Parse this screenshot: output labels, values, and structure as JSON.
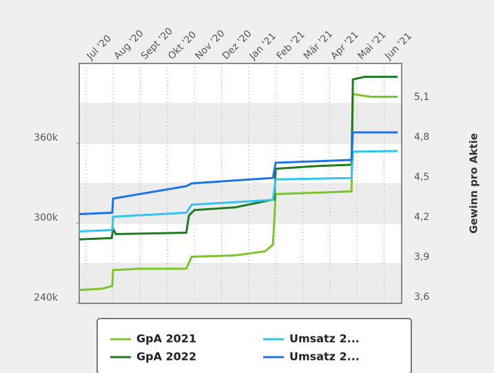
{
  "chart_data": {
    "type": "line",
    "xlim": [
      -0.25,
      11.65
    ],
    "xticks": [
      {
        "value": 0,
        "label": "Jul '20"
      },
      {
        "value": 1,
        "label": "Aug '20"
      },
      {
        "value": 2,
        "label": "Sept '20"
      },
      {
        "value": 3,
        "label": "Okt '20"
      },
      {
        "value": 4,
        "label": "Nov '20"
      },
      {
        "value": 5,
        "label": "Dez '20"
      },
      {
        "value": 6,
        "label": "Jan '21"
      },
      {
        "value": 7,
        "label": "Feb '21"
      },
      {
        "value": 8,
        "label": "Mär '21"
      },
      {
        "value": 9,
        "label": "Apr '21"
      },
      {
        "value": 10,
        "label": "Mai '21"
      },
      {
        "value": 11,
        "label": "Jun '21"
      }
    ],
    "ylim": [
      240000,
      420000
    ],
    "yticks": [
      {
        "value": 240000,
        "label": "240k"
      },
      {
        "value": 300000,
        "label": "300k"
      },
      {
        "value": 360000,
        "label": "360k"
      }
    ],
    "y2label": "Gewinn pro Aktie",
    "y2lim": [
      3.6,
      5.4
    ],
    "y2ticks": [
      {
        "value": 3.6,
        "label": "3,6"
      },
      {
        "value": 3.9,
        "label": "3,9"
      },
      {
        "value": 4.2,
        "label": "4,2"
      },
      {
        "value": 4.5,
        "label": "4,5"
      },
      {
        "value": 4.8,
        "label": "4,8"
      },
      {
        "value": 5.1,
        "label": "5,1"
      }
    ],
    "series": [
      {
        "name": "GpA 2021",
        "color": "#7dc42a",
        "axis": "y2",
        "x": [
          -0.25,
          0.6,
          0.97,
          1.0,
          2.0,
          3.7,
          3.9,
          5.5,
          6.6,
          6.9,
          7.0,
          8.5,
          9.8,
          9.85,
          10.5,
          11.5
        ],
        "values": [
          3.7,
          3.71,
          3.73,
          3.85,
          3.86,
          3.86,
          3.95,
          3.96,
          3.99,
          4.04,
          4.42,
          4.43,
          4.44,
          5.17,
          5.15,
          5.15
        ]
      },
      {
        "name": "GpA 2022",
        "color": "#1e7a1e",
        "axis": "y2",
        "x": [
          -0.25,
          0.95,
          1.0,
          1.1,
          3.7,
          3.8,
          4.0,
          5.5,
          6.7,
          6.95,
          7.0,
          8.5,
          9.8,
          9.85,
          10.3,
          11.5
        ],
        "values": [
          4.08,
          4.09,
          4.16,
          4.12,
          4.13,
          4.26,
          4.3,
          4.32,
          4.37,
          4.38,
          4.61,
          4.63,
          4.64,
          5.28,
          5.3,
          5.3
        ]
      },
      {
        "name": "Umsatz 2...",
        "color": "#33c3f0",
        "axis": "y",
        "x": [
          -0.25,
          0.97,
          1.0,
          3.7,
          3.9,
          6.9,
          7.0,
          9.8,
          9.85,
          11.5
        ],
        "values": [
          294000,
          295000,
          305000,
          308000,
          314000,
          317600,
          333000,
          334000,
          353800,
          354300
        ]
      },
      {
        "name": "Umsatz 2...",
        "color": "#1a73e8",
        "axis": "y",
        "x": [
          -0.25,
          0.97,
          1.0,
          3.7,
          3.9,
          6.9,
          7.0,
          9.8,
          9.85,
          11.5
        ],
        "values": [
          307000,
          308000,
          318600,
          327900,
          330000,
          334100,
          345500,
          347600,
          368300,
          368300
        ]
      }
    ]
  }
}
